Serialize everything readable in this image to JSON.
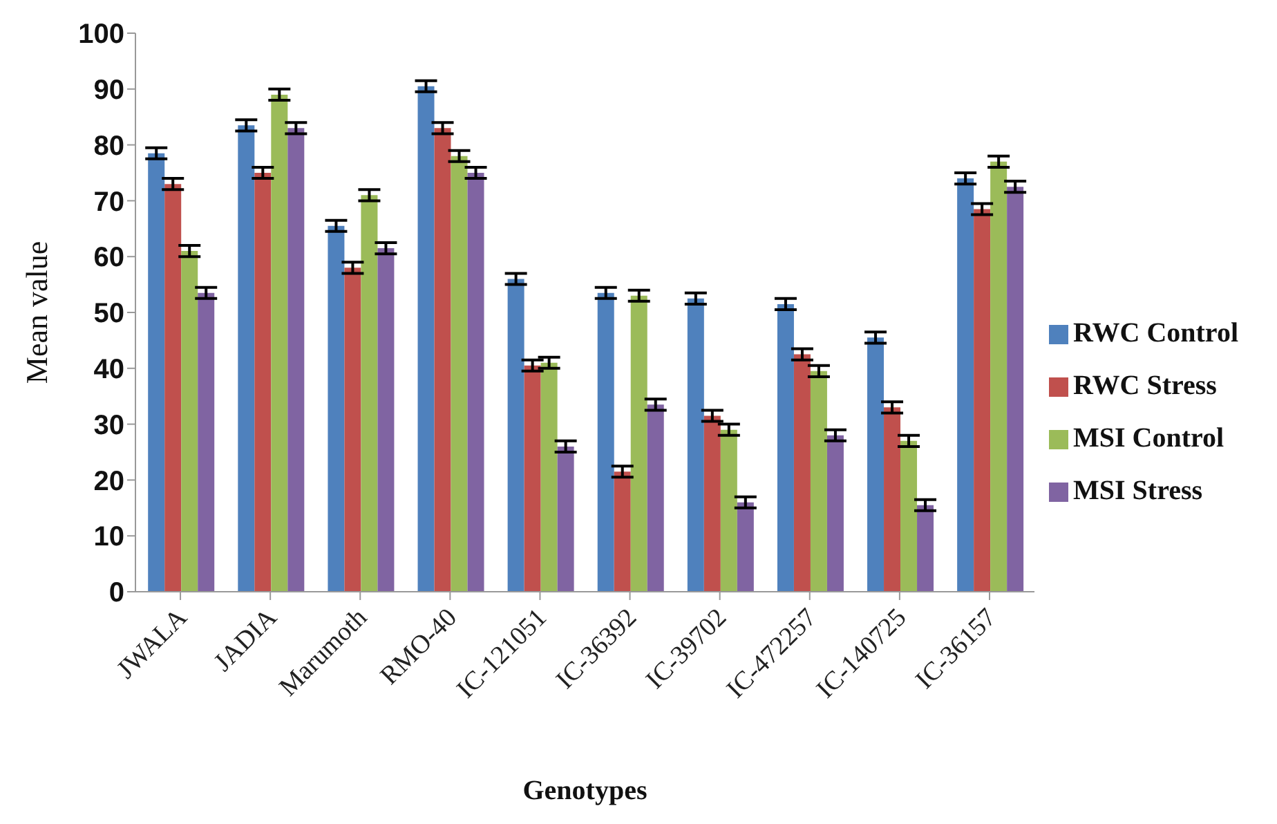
{
  "chart_data": {
    "type": "bar",
    "xlabel": "Genotypes",
    "ylabel": "Mean value",
    "categories": [
      "JWALA",
      "JADIA",
      "Marumoth",
      "RMO-40",
      "IC-121051",
      "IC-36392",
      "IC-39702",
      "IC-472257",
      "IC-140725",
      "IC-36157"
    ],
    "series": [
      {
        "name": "RWC Control",
        "color": "#4f81bd",
        "values": [
          78.5,
          83.5,
          65.5,
          90.5,
          56,
          53.5,
          52.5,
          51.5,
          45.5,
          74
        ],
        "errors": [
          1,
          1,
          1,
          1,
          1,
          1,
          1,
          1,
          1,
          1
        ]
      },
      {
        "name": "RWC Stress",
        "color": "#c0504d",
        "values": [
          73,
          75,
          58,
          83,
          40.5,
          21.5,
          31.5,
          42.5,
          33,
          68.5
        ],
        "errors": [
          1,
          1,
          1,
          1,
          1,
          1,
          1,
          1,
          1,
          1
        ]
      },
      {
        "name": "MSI Control",
        "color": "#9bbb59",
        "values": [
          61,
          89,
          71,
          78,
          41,
          53,
          29,
          39.5,
          27,
          77
        ],
        "errors": [
          1,
          1,
          1,
          1,
          1,
          1,
          1,
          1,
          1,
          1
        ]
      },
      {
        "name": "MSI Stress",
        "color": "#8064a2",
        "values": [
          53.5,
          83,
          61.5,
          75,
          26,
          33.5,
          16,
          28,
          15.5,
          72.5
        ],
        "errors": [
          1,
          1,
          1,
          1,
          1,
          1,
          1,
          1,
          1,
          1
        ]
      }
    ],
    "ylim": [
      0,
      100
    ],
    "yticks": [
      0,
      10,
      20,
      30,
      40,
      50,
      60,
      70,
      80,
      90,
      100
    ],
    "grid": false,
    "legend": "right"
  }
}
